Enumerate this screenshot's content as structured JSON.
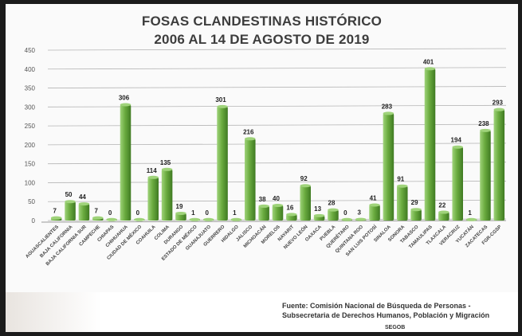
{
  "title_line1": "FOSAS CLANDESTINAS HISTÓRICO",
  "title_line2": "2006 AL 14 DE AGOSTO DE 2019",
  "source": "Fuente: Comisión Nacional de Búsqueda de Personas - Subsecretaria de Derechos Humanos, Población y Migración",
  "agency": "SEGOB",
  "colors": {
    "bar": "#6aab3f",
    "bar_light": "#9fd37a",
    "bar_dark": "#3f7a22",
    "grid": "#b5b5b5"
  },
  "chart_data": {
    "type": "bar",
    "title": "FOSAS CLANDESTINAS HISTÓRICO 2006 AL 14 DE AGOSTO DE 2019",
    "xlabel": "",
    "ylabel": "",
    "ylim": [
      0,
      450
    ],
    "yticks": [
      0,
      50,
      100,
      150,
      200,
      250,
      300,
      350,
      400,
      450
    ],
    "grid": true,
    "categories": [
      "AGUASCALIENTES",
      "BAJA CALIFORNIA",
      "BAJA CALIFORNIA SUR",
      "CAMPECHE",
      "CHIAPAS",
      "CHIHUAHUA",
      "CIUDAD DE MÉXICO",
      "COAHUILA",
      "COLIMA",
      "DURANGO",
      "ESTADO DE MÉXICO",
      "GUANAJUATO",
      "GUERRERO",
      "HIDALGO",
      "JALISCO",
      "MICHOACÁN",
      "MORELOS",
      "NAYARIT",
      "NUEVO LEÓN",
      "OAXACA",
      "PUEBLA",
      "QUERÉTARO",
      "QUINTANA ROO",
      "SAN LUIS POTOSÍ",
      "SINALOA",
      "SONORA",
      "TABASCO",
      "TAMAULIPAS",
      "TLAXCALA",
      "VERACRUZ",
      "YUCATÁN",
      "ZACATECAS",
      "FGR-CGSP"
    ],
    "values": [
      7,
      50,
      44,
      7,
      0,
      306,
      0,
      114,
      135,
      19,
      1,
      0,
      301,
      1,
      216,
      38,
      40,
      16,
      92,
      13,
      28,
      0,
      3,
      41,
      283,
      91,
      29,
      401,
      22,
      194,
      1,
      238,
      293
    ]
  }
}
